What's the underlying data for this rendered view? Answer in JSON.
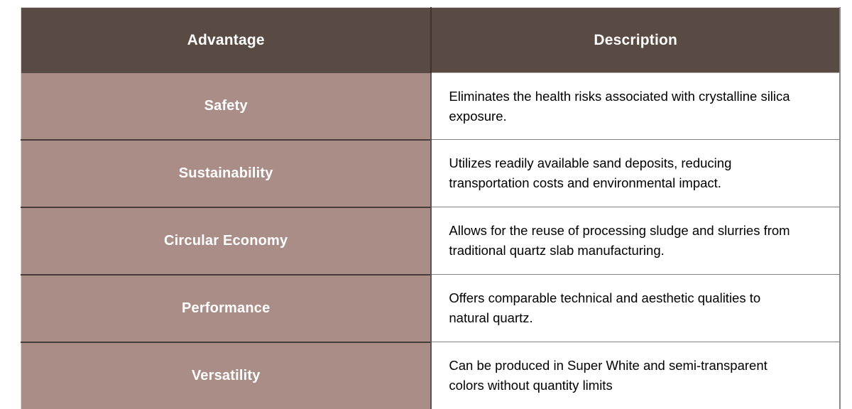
{
  "table": {
    "columns": [
      {
        "label": "Advantage"
      },
      {
        "label": "Description"
      }
    ],
    "rows": [
      {
        "advantage": "Safety",
        "description": "Eliminates the health risks associated with crystalline silica exposure."
      },
      {
        "advantage": "Sustainability",
        "description": "Utilizes readily available sand deposits, reducing transportation costs and environmental impact."
      },
      {
        "advantage": "Circular Economy",
        "description": "Allows for the reuse of processing sludge and slurries from traditional quartz slab manufacturing."
      },
      {
        "advantage": "Performance",
        "description": "Offers comparable technical and aesthetic qualities to natural quartz."
      },
      {
        "advantage": "Versatility",
        "description": "Can be produced in Super White and semi-transparent colors without quantity limits"
      }
    ],
    "colors": {
      "header_bg": "#594a43",
      "header_text": "#ffffff",
      "advantage_bg": "#aa8d86",
      "advantage_text": "#ffffff",
      "description_bg": "#ffffff",
      "description_text": "#000000",
      "border_gray": "#7f7f7f",
      "border_dark": "#463c39"
    }
  }
}
